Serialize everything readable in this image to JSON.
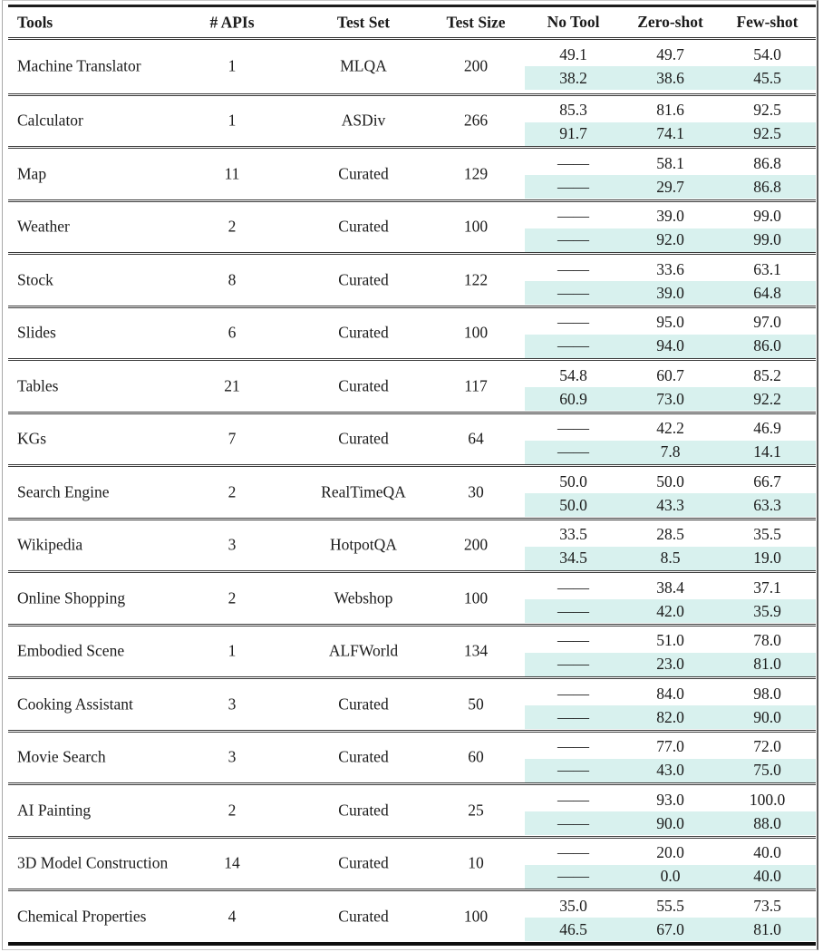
{
  "table": {
    "highlight_color": "#d8f1ee",
    "columns": [
      "Tools",
      "# APIs",
      "Test Set",
      "Test Size",
      "No Tool",
      "Zero-shot",
      "Few-shot"
    ],
    "rows": [
      {
        "tool": "Machine Translator",
        "apis": "1",
        "test_set": "MLQA",
        "test_size": "200",
        "no_tool": [
          "49.1",
          "38.2"
        ],
        "zero_shot": [
          "49.7",
          "38.6"
        ],
        "few_shot": [
          "54.0",
          "45.5"
        ]
      },
      {
        "tool": "Calculator",
        "apis": "1",
        "test_set": "ASDiv",
        "test_size": "266",
        "no_tool": [
          "85.3",
          "91.7"
        ],
        "zero_shot": [
          "81.6",
          "74.1"
        ],
        "few_shot": [
          "92.5",
          "92.5"
        ]
      },
      {
        "tool": "Map",
        "apis": "11",
        "test_set": "Curated",
        "test_size": "129",
        "no_tool": [
          "——",
          "——"
        ],
        "zero_shot": [
          "58.1",
          "29.7"
        ],
        "few_shot": [
          "86.8",
          "86.8"
        ]
      },
      {
        "tool": "Weather",
        "apis": "2",
        "test_set": "Curated",
        "test_size": "100",
        "no_tool": [
          "——",
          "——"
        ],
        "zero_shot": [
          "39.0",
          "92.0"
        ],
        "few_shot": [
          "99.0",
          "99.0"
        ]
      },
      {
        "tool": "Stock",
        "apis": "8",
        "test_set": "Curated",
        "test_size": "122",
        "no_tool": [
          "——",
          "——"
        ],
        "zero_shot": [
          "33.6",
          "39.0"
        ],
        "few_shot": [
          "63.1",
          "64.8"
        ]
      },
      {
        "tool": "Slides",
        "apis": "6",
        "test_set": "Curated",
        "test_size": "100",
        "no_tool": [
          "——",
          "——"
        ],
        "zero_shot": [
          "95.0",
          "94.0"
        ],
        "few_shot": [
          "97.0",
          "86.0"
        ]
      },
      {
        "tool": "Tables",
        "apis": "21",
        "test_set": "Curated",
        "test_size": "117",
        "no_tool": [
          "54.8",
          "60.9"
        ],
        "zero_shot": [
          "60.7",
          "73.0"
        ],
        "few_shot": [
          "85.2",
          "92.2"
        ]
      },
      {
        "tool": "KGs",
        "apis": "7",
        "test_set": "Curated",
        "test_size": "64",
        "no_tool": [
          "——",
          "——"
        ],
        "zero_shot": [
          "42.2",
          "7.8"
        ],
        "few_shot": [
          "46.9",
          "14.1"
        ]
      },
      {
        "tool": "Search Engine",
        "apis": "2",
        "test_set": "RealTimeQA",
        "test_size": "30",
        "no_tool": [
          "50.0",
          "50.0"
        ],
        "zero_shot": [
          "50.0",
          "43.3"
        ],
        "few_shot": [
          "66.7",
          "63.3"
        ]
      },
      {
        "tool": "Wikipedia",
        "apis": "3",
        "test_set": "HotpotQA",
        "test_size": "200",
        "no_tool": [
          "33.5",
          "34.5"
        ],
        "zero_shot": [
          "28.5",
          "8.5"
        ],
        "few_shot": [
          "35.5",
          "19.0"
        ]
      },
      {
        "tool": "Online Shopping",
        "apis": "2",
        "test_set": "Webshop",
        "test_size": "100",
        "no_tool": [
          "——",
          "——"
        ],
        "zero_shot": [
          "38.4",
          "42.0"
        ],
        "few_shot": [
          "37.1",
          "35.9"
        ]
      },
      {
        "tool": "Embodied Scene",
        "apis": "1",
        "test_set": "ALFWorld",
        "test_size": "134",
        "no_tool": [
          "——",
          "——"
        ],
        "zero_shot": [
          "51.0",
          "23.0"
        ],
        "few_shot": [
          "78.0",
          "81.0"
        ]
      },
      {
        "tool": "Cooking Assistant",
        "apis": "3",
        "test_set": "Curated",
        "test_size": "50",
        "no_tool": [
          "——",
          "——"
        ],
        "zero_shot": [
          "84.0",
          "82.0"
        ],
        "few_shot": [
          "98.0",
          "90.0"
        ]
      },
      {
        "tool": "Movie Search",
        "apis": "3",
        "test_set": "Curated",
        "test_size": "60",
        "no_tool": [
          "——",
          "——"
        ],
        "zero_shot": [
          "77.0",
          "43.0"
        ],
        "few_shot": [
          "72.0",
          "75.0"
        ]
      },
      {
        "tool": "AI Painting",
        "apis": "2",
        "test_set": "Curated",
        "test_size": "25",
        "no_tool": [
          "——",
          "——"
        ],
        "zero_shot": [
          "93.0",
          "90.0"
        ],
        "few_shot": [
          "100.0",
          "88.0"
        ]
      },
      {
        "tool": "3D Model Construction",
        "apis": "14",
        "test_set": "Curated",
        "test_size": "10",
        "no_tool": [
          "——",
          "——"
        ],
        "zero_shot": [
          "20.0",
          "0.0"
        ],
        "few_shot": [
          "40.0",
          "40.0"
        ]
      },
      {
        "tool": "Chemical Properties",
        "apis": "4",
        "test_set": "Curated",
        "test_size": "100",
        "no_tool": [
          "35.0",
          "46.5"
        ],
        "zero_shot": [
          "55.5",
          "67.0"
        ],
        "few_shot": [
          "73.5",
          "81.0"
        ]
      }
    ]
  }
}
